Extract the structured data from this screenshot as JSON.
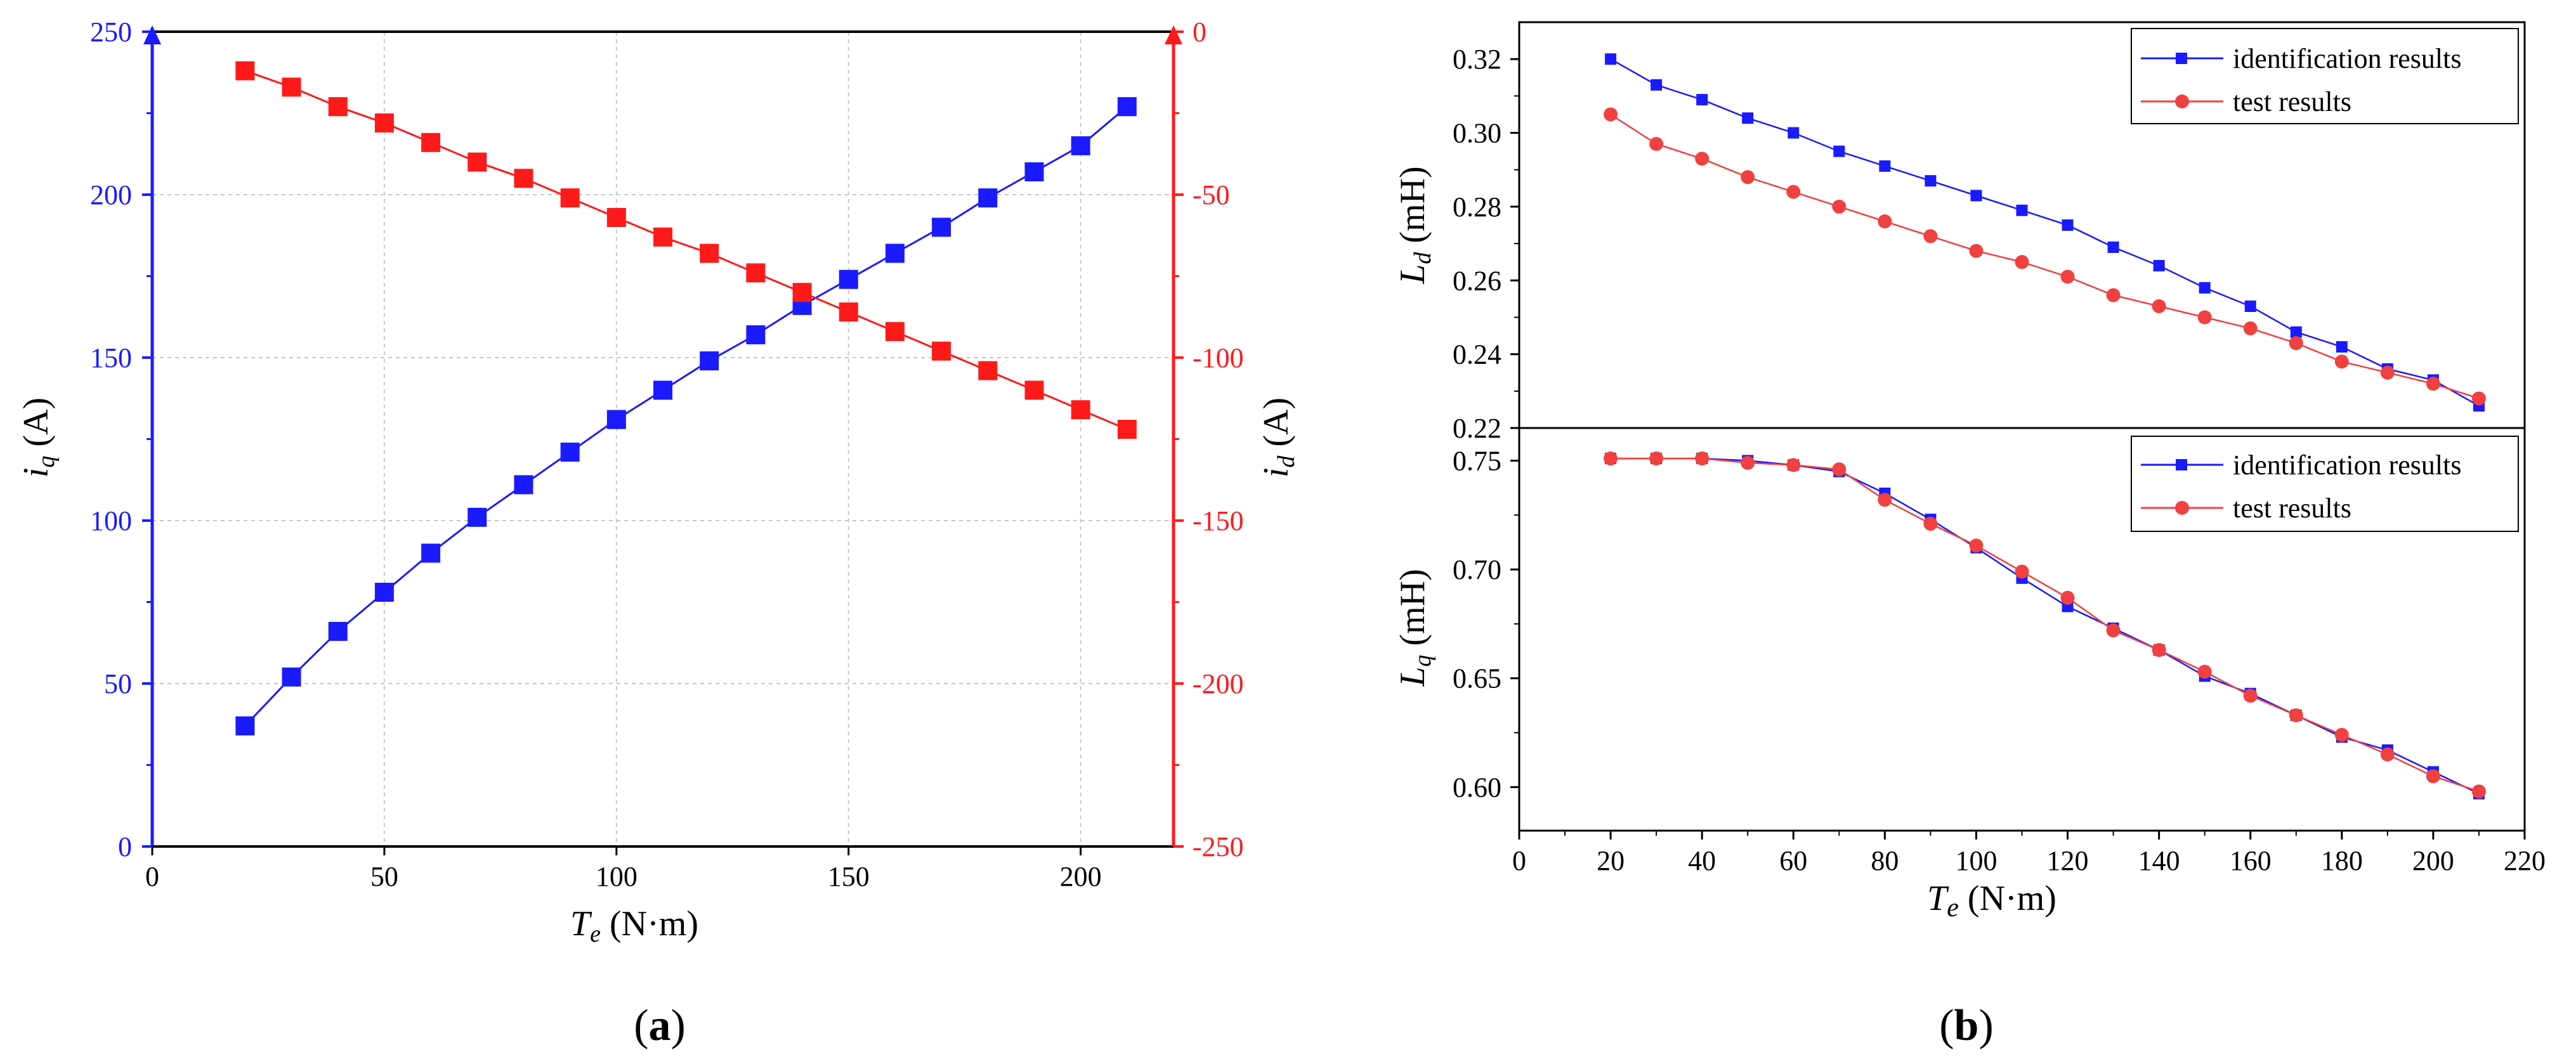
{
  "panel_labels": {
    "a": "a",
    "b": "b"
  },
  "colors": {
    "blue": "#1a1aff",
    "red": "#ff1a1a",
    "red_marker": "#f04040",
    "axis": "#000000"
  },
  "chart_data": [
    {
      "id": "a",
      "type": "line",
      "xlabel_main": "T",
      "xlabel_sub": "e",
      "xlabel_unit": " (N·m)",
      "ylabel_left_main": "i",
      "ylabel_left_sub": "q",
      "ylabel_left_unit": " (A)",
      "ylabel_right_main": "i",
      "ylabel_right_sub": "d",
      "ylabel_right_unit": " (A)",
      "xlim": [
        0,
        220
      ],
      "xticks": [
        0,
        50,
        100,
        150,
        200
      ],
      "ylim_left": [
        0,
        250
      ],
      "yticks_left": [
        0,
        50,
        100,
        150,
        200,
        250
      ],
      "ylim_right": [
        -250,
        0
      ],
      "yticks_right": [
        0,
        -50,
        -100,
        -150,
        -200,
        -250
      ],
      "x": [
        20,
        30,
        40,
        50,
        60,
        70,
        80,
        90,
        100,
        110,
        120,
        130,
        140,
        150,
        160,
        170,
        180,
        190,
        200,
        210
      ],
      "series": [
        {
          "name": "iq",
          "axis": "left",
          "color": "#1a1aff",
          "marker": "square",
          "values": [
            37,
            52,
            66,
            78,
            90,
            101,
            111,
            121,
            131,
            140,
            149,
            157,
            166,
            174,
            182,
            190,
            199,
            207,
            215,
            227
          ]
        },
        {
          "name": "id",
          "axis": "right",
          "color": "#ff1a1a",
          "marker": "square",
          "values": [
            -12,
            -17,
            -23,
            -28,
            -34,
            -40,
            -45,
            -51,
            -57,
            -63,
            -68,
            -74,
            -80,
            -86,
            -92,
            -98,
            -104,
            -110,
            -116,
            -122
          ]
        }
      ]
    },
    {
      "id": "b-top",
      "type": "line",
      "ylabel_main": "L",
      "ylabel_sub": "d",
      "ylabel_unit": " (mH)",
      "xlim": [
        0,
        220
      ],
      "ylim": [
        0.22,
        0.33
      ],
      "yticks": [
        0.22,
        0.24,
        0.26,
        0.28,
        0.3,
        0.32
      ],
      "ytick_labels": [
        "0.22",
        "0.24",
        "0.26",
        "0.28",
        "0.30",
        "0.32"
      ],
      "legend": [
        "identification results",
        "test results"
      ],
      "x": [
        20,
        30,
        40,
        50,
        60,
        70,
        80,
        90,
        100,
        110,
        120,
        130,
        140,
        150,
        160,
        170,
        180,
        190,
        200,
        210
      ],
      "series": [
        {
          "name": "identification results",
          "color": "#1a1aff",
          "marker": "square",
          "values": [
            0.32,
            0.313,
            0.309,
            0.304,
            0.3,
            0.295,
            0.291,
            0.287,
            0.283,
            0.279,
            0.275,
            0.269,
            0.264,
            0.258,
            0.253,
            0.246,
            0.242,
            0.236,
            0.233,
            0.226
          ]
        },
        {
          "name": "test results",
          "color": "#f04040",
          "marker": "circle",
          "values": [
            0.305,
            0.297,
            0.293,
            0.288,
            0.284,
            0.28,
            0.276,
            0.272,
            0.268,
            0.265,
            0.261,
            0.256,
            0.253,
            0.25,
            0.247,
            0.243,
            0.238,
            0.235,
            0.232,
            0.228
          ]
        }
      ]
    },
    {
      "id": "b-bottom",
      "type": "line",
      "xlabel_main": "T",
      "xlabel_sub": "e",
      "xlabel_unit": " (N·m)",
      "ylabel_main": "L",
      "ylabel_sub": "q",
      "ylabel_unit": " (mH)",
      "xlim": [
        0,
        220
      ],
      "xticks": [
        0,
        20,
        40,
        60,
        80,
        100,
        120,
        140,
        160,
        180,
        200,
        220
      ],
      "ylim": [
        0.58,
        0.765
      ],
      "yticks": [
        0.6,
        0.65,
        0.7,
        0.75
      ],
      "ytick_labels": [
        "0.60",
        "0.65",
        "0.70",
        "0.75"
      ],
      "legend": [
        "identification results",
        "test results"
      ],
      "x": [
        20,
        30,
        40,
        50,
        60,
        70,
        80,
        90,
        100,
        110,
        120,
        130,
        140,
        150,
        160,
        170,
        180,
        190,
        200,
        210
      ],
      "series": [
        {
          "name": "identification results",
          "color": "#1a1aff",
          "marker": "square",
          "values": [
            0.751,
            0.751,
            0.751,
            0.75,
            0.748,
            0.745,
            0.735,
            0.723,
            0.71,
            0.696,
            0.683,
            0.673,
            0.663,
            0.651,
            0.643,
            0.633,
            0.623,
            0.617,
            0.607,
            0.597
          ]
        },
        {
          "name": "test results",
          "color": "#f04040",
          "marker": "circle",
          "values": [
            0.751,
            0.751,
            0.751,
            0.749,
            0.748,
            0.746,
            0.732,
            0.721,
            0.711,
            0.699,
            0.687,
            0.672,
            0.663,
            0.653,
            0.642,
            0.633,
            0.624,
            0.615,
            0.605,
            0.598
          ]
        }
      ]
    }
  ]
}
